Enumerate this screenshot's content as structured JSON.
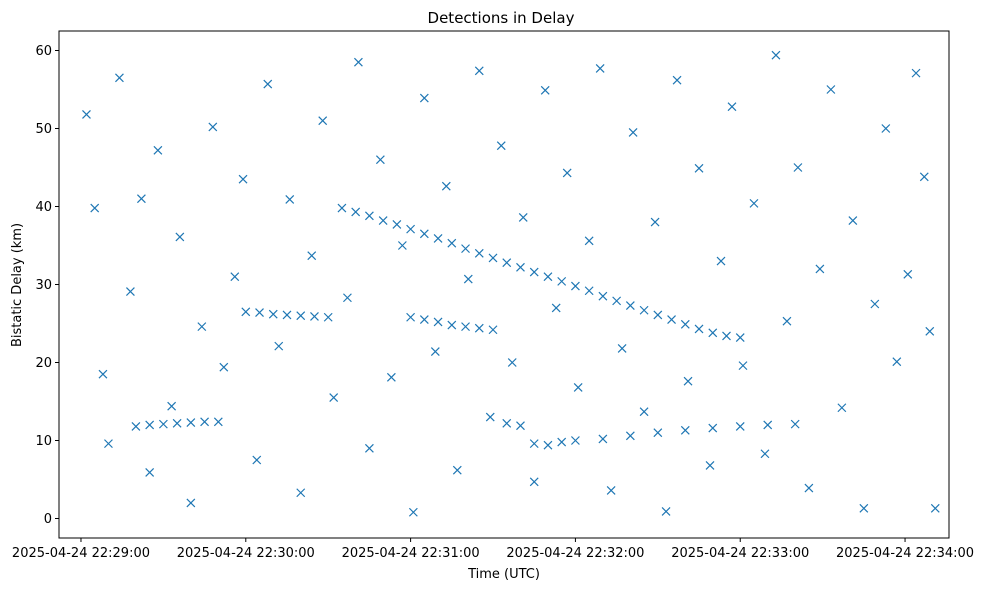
{
  "chart_data": {
    "type": "scatter",
    "title": "Detections in Delay",
    "xlabel": "Time (UTC)",
    "ylabel": "Bistatic Delay (km)",
    "marker": "x",
    "color": "#1f77b4",
    "grid": false,
    "legend": "none",
    "xlim": [
      "2025-04-24 22:28:52",
      "2025-04-24 22:34:16"
    ],
    "ylim": [
      -2.5,
      62.5
    ],
    "x_ticks": [
      "2025-04-24 22:29:00",
      "2025-04-24 22:30:00",
      "2025-04-24 22:31:00",
      "2025-04-24 22:32:00",
      "2025-04-24 22:33:00",
      "2025-04-24 22:34:00"
    ],
    "y_ticks": [
      0,
      10,
      20,
      30,
      40,
      50,
      60
    ],
    "series": [
      {
        "points": [
          [
            "2025-04-24 22:29:20",
            11.8
          ],
          [
            "2025-04-24 22:29:25",
            12.0
          ],
          [
            "2025-04-24 22:29:30",
            12.1
          ],
          [
            "2025-04-24 22:29:35",
            12.2
          ],
          [
            "2025-04-24 22:29:40",
            12.3
          ],
          [
            "2025-04-24 22:29:45",
            12.4
          ],
          [
            "2025-04-24 22:29:50",
            12.4
          ],
          [
            "2025-04-24 22:30:00",
            26.5
          ],
          [
            "2025-04-24 22:30:05",
            26.4
          ],
          [
            "2025-04-24 22:30:10",
            26.2
          ],
          [
            "2025-04-24 22:30:15",
            26.1
          ],
          [
            "2025-04-24 22:30:20",
            26.0
          ],
          [
            "2025-04-24 22:30:25",
            25.9
          ],
          [
            "2025-04-24 22:30:30",
            25.8
          ],
          [
            "2025-04-24 22:30:35",
            39.8
          ],
          [
            "2025-04-24 22:30:40",
            39.3
          ],
          [
            "2025-04-24 22:30:45",
            38.8
          ],
          [
            "2025-04-24 22:30:50",
            38.2
          ],
          [
            "2025-04-24 22:30:55",
            37.7
          ],
          [
            "2025-04-24 22:31:00",
            37.1
          ],
          [
            "2025-04-24 22:31:05",
            36.5
          ],
          [
            "2025-04-24 22:31:10",
            35.9
          ],
          [
            "2025-04-24 22:31:15",
            35.3
          ],
          [
            "2025-04-24 22:31:20",
            34.6
          ],
          [
            "2025-04-24 22:31:25",
            34.0
          ],
          [
            "2025-04-24 22:31:30",
            33.4
          ],
          [
            "2025-04-24 22:31:35",
            32.8
          ],
          [
            "2025-04-24 22:31:40",
            32.2
          ],
          [
            "2025-04-24 22:31:45",
            31.6
          ],
          [
            "2025-04-24 22:31:50",
            31.0
          ],
          [
            "2025-04-24 22:31:55",
            30.4
          ],
          [
            "2025-04-24 22:32:00",
            29.8
          ],
          [
            "2025-04-24 22:32:05",
            29.2
          ],
          [
            "2025-04-24 22:32:10",
            28.5
          ],
          [
            "2025-04-24 22:32:15",
            27.9
          ],
          [
            "2025-04-24 22:32:20",
            27.3
          ],
          [
            "2025-04-24 22:32:25",
            26.7
          ],
          [
            "2025-04-24 22:32:30",
            26.1
          ],
          [
            "2025-04-24 22:32:35",
            25.5
          ],
          [
            "2025-04-24 22:32:40",
            24.9
          ],
          [
            "2025-04-24 22:32:45",
            24.3
          ],
          [
            "2025-04-24 22:32:50",
            23.8
          ],
          [
            "2025-04-24 22:32:55",
            23.4
          ],
          [
            "2025-04-24 22:33:00",
            23.2
          ],
          [
            "2025-04-24 22:31:00",
            25.8
          ],
          [
            "2025-04-24 22:31:05",
            25.5
          ],
          [
            "2025-04-24 22:31:10",
            25.2
          ],
          [
            "2025-04-24 22:31:15",
            24.8
          ],
          [
            "2025-04-24 22:31:20",
            24.6
          ],
          [
            "2025-04-24 22:31:25",
            24.4
          ],
          [
            "2025-04-24 22:31:30",
            24.2
          ],
          [
            "2025-04-24 22:31:35",
            12.2
          ],
          [
            "2025-04-24 22:31:40",
            11.9
          ],
          [
            "2025-04-24 22:31:45",
            9.6
          ],
          [
            "2025-04-24 22:31:50",
            9.4
          ],
          [
            "2025-04-24 22:31:55",
            9.8
          ],
          [
            "2025-04-24 22:32:00",
            10.0
          ],
          [
            "2025-04-24 22:32:10",
            10.2
          ],
          [
            "2025-04-24 22:32:20",
            10.6
          ],
          [
            "2025-04-24 22:32:30",
            11.0
          ],
          [
            "2025-04-24 22:32:40",
            11.3
          ],
          [
            "2025-04-24 22:32:50",
            11.6
          ],
          [
            "2025-04-24 22:33:00",
            11.8
          ],
          [
            "2025-04-24 22:33:10",
            12.0
          ],
          [
            "2025-04-24 22:33:20",
            12.1
          ],
          [
            "2025-04-24 22:29:02",
            51.8
          ],
          [
            "2025-04-24 22:29:05",
            39.8
          ],
          [
            "2025-04-24 22:29:08",
            18.5
          ],
          [
            "2025-04-24 22:29:10",
            9.6
          ],
          [
            "2025-04-24 22:29:14",
            56.5
          ],
          [
            "2025-04-24 22:29:18",
            29.1
          ],
          [
            "2025-04-24 22:29:22",
            41.0
          ],
          [
            "2025-04-24 22:29:25",
            5.9
          ],
          [
            "2025-04-24 22:29:28",
            47.2
          ],
          [
            "2025-04-24 22:29:33",
            14.4
          ],
          [
            "2025-04-24 22:29:36",
            36.1
          ],
          [
            "2025-04-24 22:29:40",
            2.0
          ],
          [
            "2025-04-24 22:29:44",
            24.6
          ],
          [
            "2025-04-24 22:29:48",
            50.2
          ],
          [
            "2025-04-24 22:29:52",
            19.4
          ],
          [
            "2025-04-24 22:29:56",
            31.0
          ],
          [
            "2025-04-24 22:29:59",
            43.5
          ],
          [
            "2025-04-24 22:30:04",
            7.5
          ],
          [
            "2025-04-24 22:30:08",
            55.7
          ],
          [
            "2025-04-24 22:30:12",
            22.1
          ],
          [
            "2025-04-24 22:30:16",
            40.9
          ],
          [
            "2025-04-24 22:30:20",
            3.3
          ],
          [
            "2025-04-24 22:30:24",
            33.7
          ],
          [
            "2025-04-24 22:30:28",
            51.0
          ],
          [
            "2025-04-24 22:30:32",
            15.5
          ],
          [
            "2025-04-24 22:30:37",
            28.3
          ],
          [
            "2025-04-24 22:30:41",
            58.5
          ],
          [
            "2025-04-24 22:30:45",
            9.0
          ],
          [
            "2025-04-24 22:30:49",
            46.0
          ],
          [
            "2025-04-24 22:30:53",
            18.1
          ],
          [
            "2025-04-24 22:30:57",
            35.0
          ],
          [
            "2025-04-24 22:31:01",
            0.8
          ],
          [
            "2025-04-24 22:31:05",
            53.9
          ],
          [
            "2025-04-24 22:31:09",
            21.4
          ],
          [
            "2025-04-24 22:31:13",
            42.6
          ],
          [
            "2025-04-24 22:31:17",
            6.2
          ],
          [
            "2025-04-24 22:31:21",
            30.7
          ],
          [
            "2025-04-24 22:31:25",
            57.4
          ],
          [
            "2025-04-24 22:31:29",
            13.0
          ],
          [
            "2025-04-24 22:31:33",
            47.8
          ],
          [
            "2025-04-24 22:31:37",
            20.0
          ],
          [
            "2025-04-24 22:31:41",
            38.6
          ],
          [
            "2025-04-24 22:31:45",
            4.7
          ],
          [
            "2025-04-24 22:31:49",
            54.9
          ],
          [
            "2025-04-24 22:31:53",
            27.0
          ],
          [
            "2025-04-24 22:31:57",
            44.3
          ],
          [
            "2025-04-24 22:32:01",
            16.8
          ],
          [
            "2025-04-24 22:32:05",
            35.6
          ],
          [
            "2025-04-24 22:32:09",
            57.7
          ],
          [
            "2025-04-24 22:32:13",
            3.6
          ],
          [
            "2025-04-24 22:32:17",
            21.8
          ],
          [
            "2025-04-24 22:32:21",
            49.5
          ],
          [
            "2025-04-24 22:32:25",
            13.7
          ],
          [
            "2025-04-24 22:32:29",
            38.0
          ],
          [
            "2025-04-24 22:32:33",
            0.9
          ],
          [
            "2025-04-24 22:32:37",
            56.2
          ],
          [
            "2025-04-24 22:32:41",
            17.6
          ],
          [
            "2025-04-24 22:32:45",
            44.9
          ],
          [
            "2025-04-24 22:32:49",
            6.8
          ],
          [
            "2025-04-24 22:32:53",
            33.0
          ],
          [
            "2025-04-24 22:32:57",
            52.8
          ],
          [
            "2025-04-24 22:33:01",
            19.6
          ],
          [
            "2025-04-24 22:33:05",
            40.4
          ],
          [
            "2025-04-24 22:33:09",
            8.3
          ],
          [
            "2025-04-24 22:33:13",
            59.4
          ],
          [
            "2025-04-24 22:33:17",
            25.3
          ],
          [
            "2025-04-24 22:33:21",
            45.0
          ],
          [
            "2025-04-24 22:33:25",
            3.9
          ],
          [
            "2025-04-24 22:33:29",
            32.0
          ],
          [
            "2025-04-24 22:33:33",
            55.0
          ],
          [
            "2025-04-24 22:33:37",
            14.2
          ],
          [
            "2025-04-24 22:33:41",
            38.2
          ],
          [
            "2025-04-24 22:33:45",
            1.3
          ],
          [
            "2025-04-24 22:33:49",
            27.5
          ],
          [
            "2025-04-24 22:33:53",
            50.0
          ],
          [
            "2025-04-24 22:33:57",
            20.1
          ],
          [
            "2025-04-24 22:34:01",
            31.3
          ],
          [
            "2025-04-24 22:34:04",
            57.1
          ],
          [
            "2025-04-24 22:34:07",
            43.8
          ],
          [
            "2025-04-24 22:34:09",
            24.0
          ],
          [
            "2025-04-24 22:34:11",
            1.3
          ]
        ]
      }
    ]
  }
}
